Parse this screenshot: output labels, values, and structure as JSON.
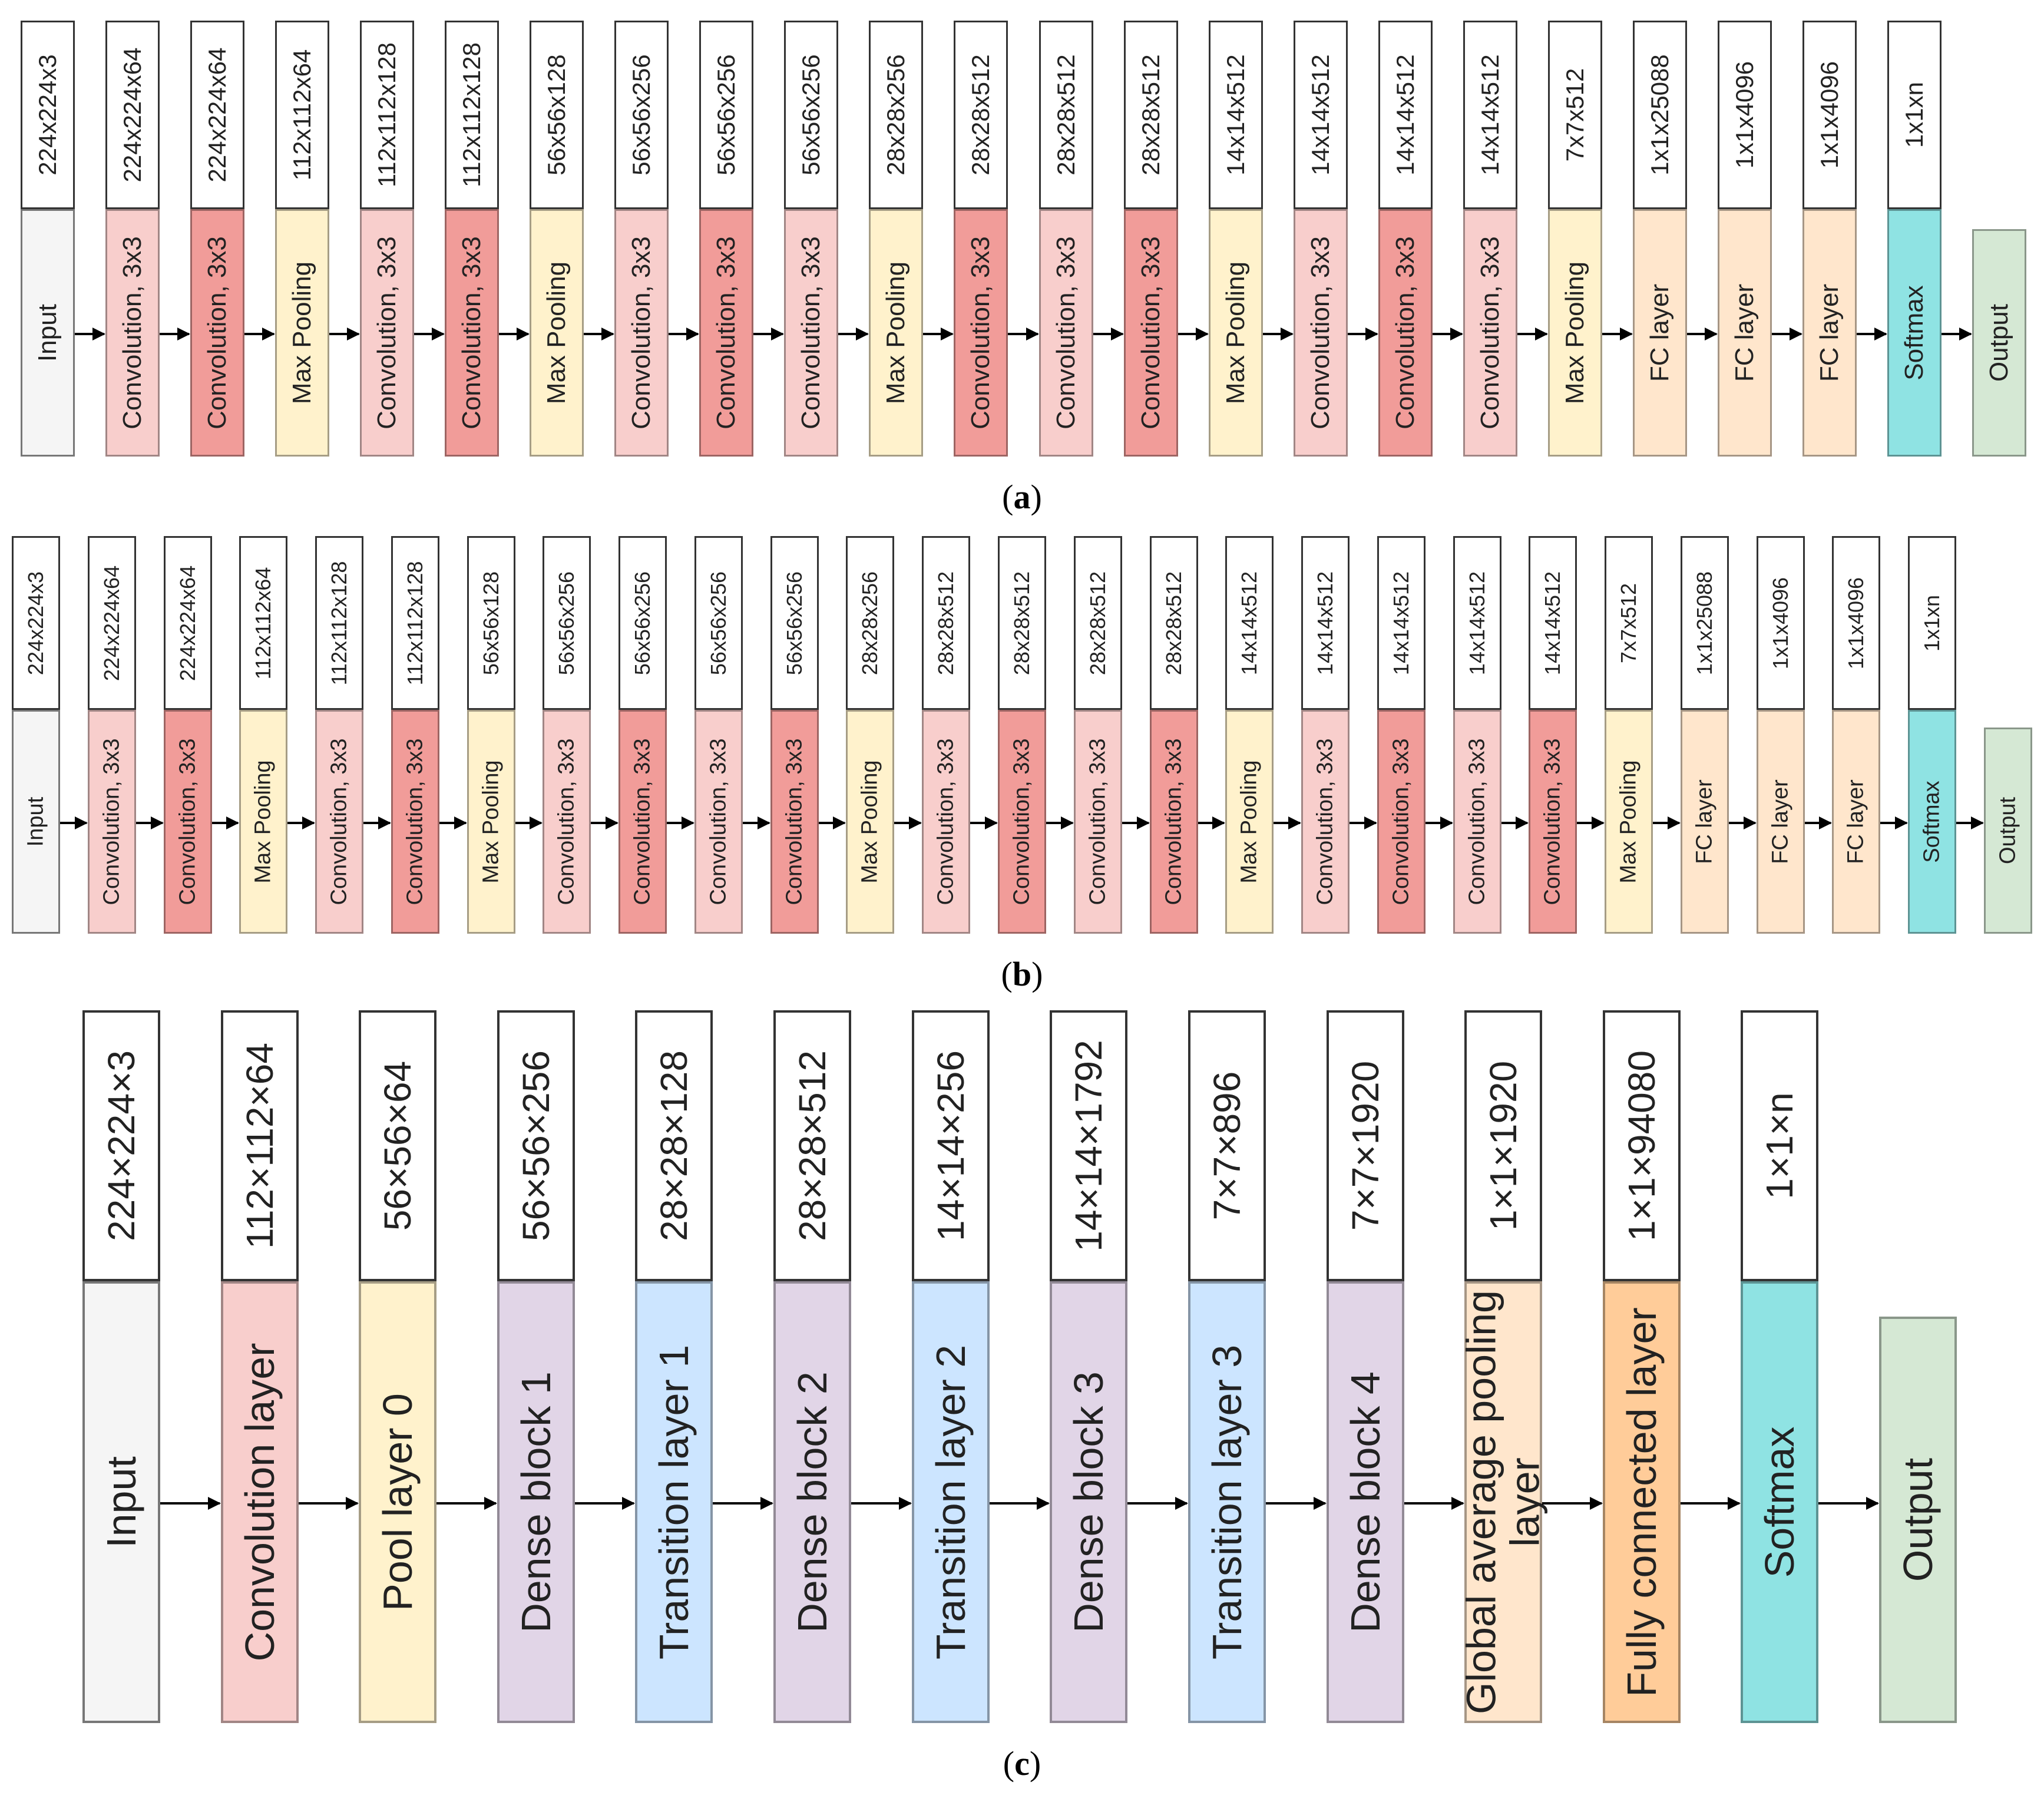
{
  "colors": {
    "input": "#f5f5f5",
    "conv_light": "#f8cecc",
    "conv_dark": "#f19c99",
    "pool": "#fff2cc",
    "fc": "#ffe6cc",
    "softmax": "#8fe3e3",
    "output": "#d5e8d4",
    "dense": "#e1d5e7",
    "transition": "#cce5ff",
    "fc_dense": "#ffcc99"
  },
  "diagrams": [
    {
      "caption": "a",
      "layers": [
        {
          "label": "Input",
          "size": "224x224x3",
          "kind": "input"
        },
        {
          "label": "Convolution, 3x3",
          "size": "224x224x64",
          "kind": "conv_light"
        },
        {
          "label": "Convolution, 3x3",
          "size": "224x224x64",
          "kind": "conv_dark"
        },
        {
          "label": "Max Pooling",
          "size": "112x112x64",
          "kind": "pool"
        },
        {
          "label": "Convolution, 3x3",
          "size": "112x112x128",
          "kind": "conv_light"
        },
        {
          "label": "Convolution, 3x3",
          "size": "112x112x128",
          "kind": "conv_dark"
        },
        {
          "label": "Max Pooling",
          "size": "56x56x128",
          "kind": "pool"
        },
        {
          "label": "Convolution, 3x3",
          "size": "56x56x256",
          "kind": "conv_light"
        },
        {
          "label": "Convolution, 3x3",
          "size": "56x56x256",
          "kind": "conv_dark"
        },
        {
          "label": "Convolution, 3x3",
          "size": "56x56x256",
          "kind": "conv_light"
        },
        {
          "label": "Max Pooling",
          "size": "28x28x256",
          "kind": "pool"
        },
        {
          "label": "Convolution, 3x3",
          "size": "28x28x512",
          "kind": "conv_dark"
        },
        {
          "label": "Convolution, 3x3",
          "size": "28x28x512",
          "kind": "conv_light"
        },
        {
          "label": "Convolution, 3x3",
          "size": "28x28x512",
          "kind": "conv_dark"
        },
        {
          "label": "Max Pooling",
          "size": "14x14x512",
          "kind": "pool"
        },
        {
          "label": "Convolution, 3x3",
          "size": "14x14x512",
          "kind": "conv_light"
        },
        {
          "label": "Convolution, 3x3",
          "size": "14x14x512",
          "kind": "conv_dark"
        },
        {
          "label": "Convolution, 3x3",
          "size": "14x14x512",
          "kind": "conv_light"
        },
        {
          "label": "Max Pooling",
          "size": "7x7x512",
          "kind": "pool"
        },
        {
          "label": "FC layer",
          "size": "1x1x25088",
          "kind": "fc"
        },
        {
          "label": "FC layer",
          "size": "1x1x4096",
          "kind": "fc"
        },
        {
          "label": "FC layer",
          "size": "1x1x4096",
          "kind": "fc"
        },
        {
          "label": "Softmax",
          "size": "1x1xn",
          "kind": "softmax"
        },
        {
          "label": "Output",
          "size": null,
          "kind": "output"
        }
      ]
    },
    {
      "caption": "b",
      "layers": [
        {
          "label": "Input",
          "size": "224x224x3",
          "kind": "input"
        },
        {
          "label": "Convolution, 3x3",
          "size": "224x224x64",
          "kind": "conv_light"
        },
        {
          "label": "Convolution, 3x3",
          "size": "224x224x64",
          "kind": "conv_dark"
        },
        {
          "label": "Max Pooling",
          "size": "112x112x64",
          "kind": "pool"
        },
        {
          "label": "Convolution, 3x3",
          "size": "112x112x128",
          "kind": "conv_light"
        },
        {
          "label": "Convolution, 3x3",
          "size": "112x112x128",
          "kind": "conv_dark"
        },
        {
          "label": "Max Pooling",
          "size": "56x56x128",
          "kind": "pool"
        },
        {
          "label": "Convolution, 3x3",
          "size": "56x56x256",
          "kind": "conv_light"
        },
        {
          "label": "Convolution, 3x3",
          "size": "56x56x256",
          "kind": "conv_dark"
        },
        {
          "label": "Convolution, 3x3",
          "size": "56x56x256",
          "kind": "conv_light"
        },
        {
          "label": "Convolution, 3x3",
          "size": "56x56x256",
          "kind": "conv_dark"
        },
        {
          "label": "Max Pooling",
          "size": "28x28x256",
          "kind": "pool"
        },
        {
          "label": "Convolution, 3x3",
          "size": "28x28x512",
          "kind": "conv_light"
        },
        {
          "label": "Convolution, 3x3",
          "size": "28x28x512",
          "kind": "conv_dark"
        },
        {
          "label": "Convolution, 3x3",
          "size": "28x28x512",
          "kind": "conv_light"
        },
        {
          "label": "Convolution, 3x3",
          "size": "28x28x512",
          "kind": "conv_dark"
        },
        {
          "label": "Max Pooling",
          "size": "14x14x512",
          "kind": "pool"
        },
        {
          "label": "Convolution, 3x3",
          "size": "14x14x512",
          "kind": "conv_light"
        },
        {
          "label": "Convolution, 3x3",
          "size": "14x14x512",
          "kind": "conv_dark"
        },
        {
          "label": "Convolution, 3x3",
          "size": "14x14x512",
          "kind": "conv_light"
        },
        {
          "label": "Convolution, 3x3",
          "size": "14x14x512",
          "kind": "conv_dark"
        },
        {
          "label": "Max Pooling",
          "size": "7x7x512",
          "kind": "pool"
        },
        {
          "label": "FC layer",
          "size": "1x1x25088",
          "kind": "fc"
        },
        {
          "label": "FC layer",
          "size": "1x1x4096",
          "kind": "fc"
        },
        {
          "label": "FC layer",
          "size": "1x1x4096",
          "kind": "fc"
        },
        {
          "label": "Softmax",
          "size": "1x1xn",
          "kind": "softmax"
        },
        {
          "label": "Output",
          "size": null,
          "kind": "output"
        }
      ]
    },
    {
      "caption": "c",
      "layers": [
        {
          "label": "Input",
          "size": "224×224×3",
          "kind": "input"
        },
        {
          "label": "Convolution layer",
          "size": "112×112×64",
          "kind": "conv_light"
        },
        {
          "label": "Pool layer 0",
          "size": "56×56×64",
          "kind": "pool"
        },
        {
          "label": "Dense block 1",
          "size": "56×56×256",
          "kind": "dense"
        },
        {
          "label": "Transition layer 1",
          "size": "28×28×128",
          "kind": "transition"
        },
        {
          "label": "Dense block 2",
          "size": "28×28×512",
          "kind": "dense"
        },
        {
          "label": "Transition layer 2",
          "size": "14×14×256",
          "kind": "transition"
        },
        {
          "label": "Dense block 3",
          "size": "14×14×1792",
          "kind": "dense"
        },
        {
          "label": "Transition layer 3",
          "size": "7×7×896",
          "kind": "transition"
        },
        {
          "label": "Dense block 4",
          "size": "7×7×1920",
          "kind": "dense"
        },
        {
          "label": "Global average pooling layer",
          "size": "1×1×1920",
          "kind": "fc"
        },
        {
          "label": "Fully connected layer",
          "size": "1×1×94080",
          "kind": "fc_dense"
        },
        {
          "label": "Softmax",
          "size": "1×1×n",
          "kind": "softmax"
        },
        {
          "label": "Output",
          "size": null,
          "kind": "output"
        }
      ]
    }
  ]
}
